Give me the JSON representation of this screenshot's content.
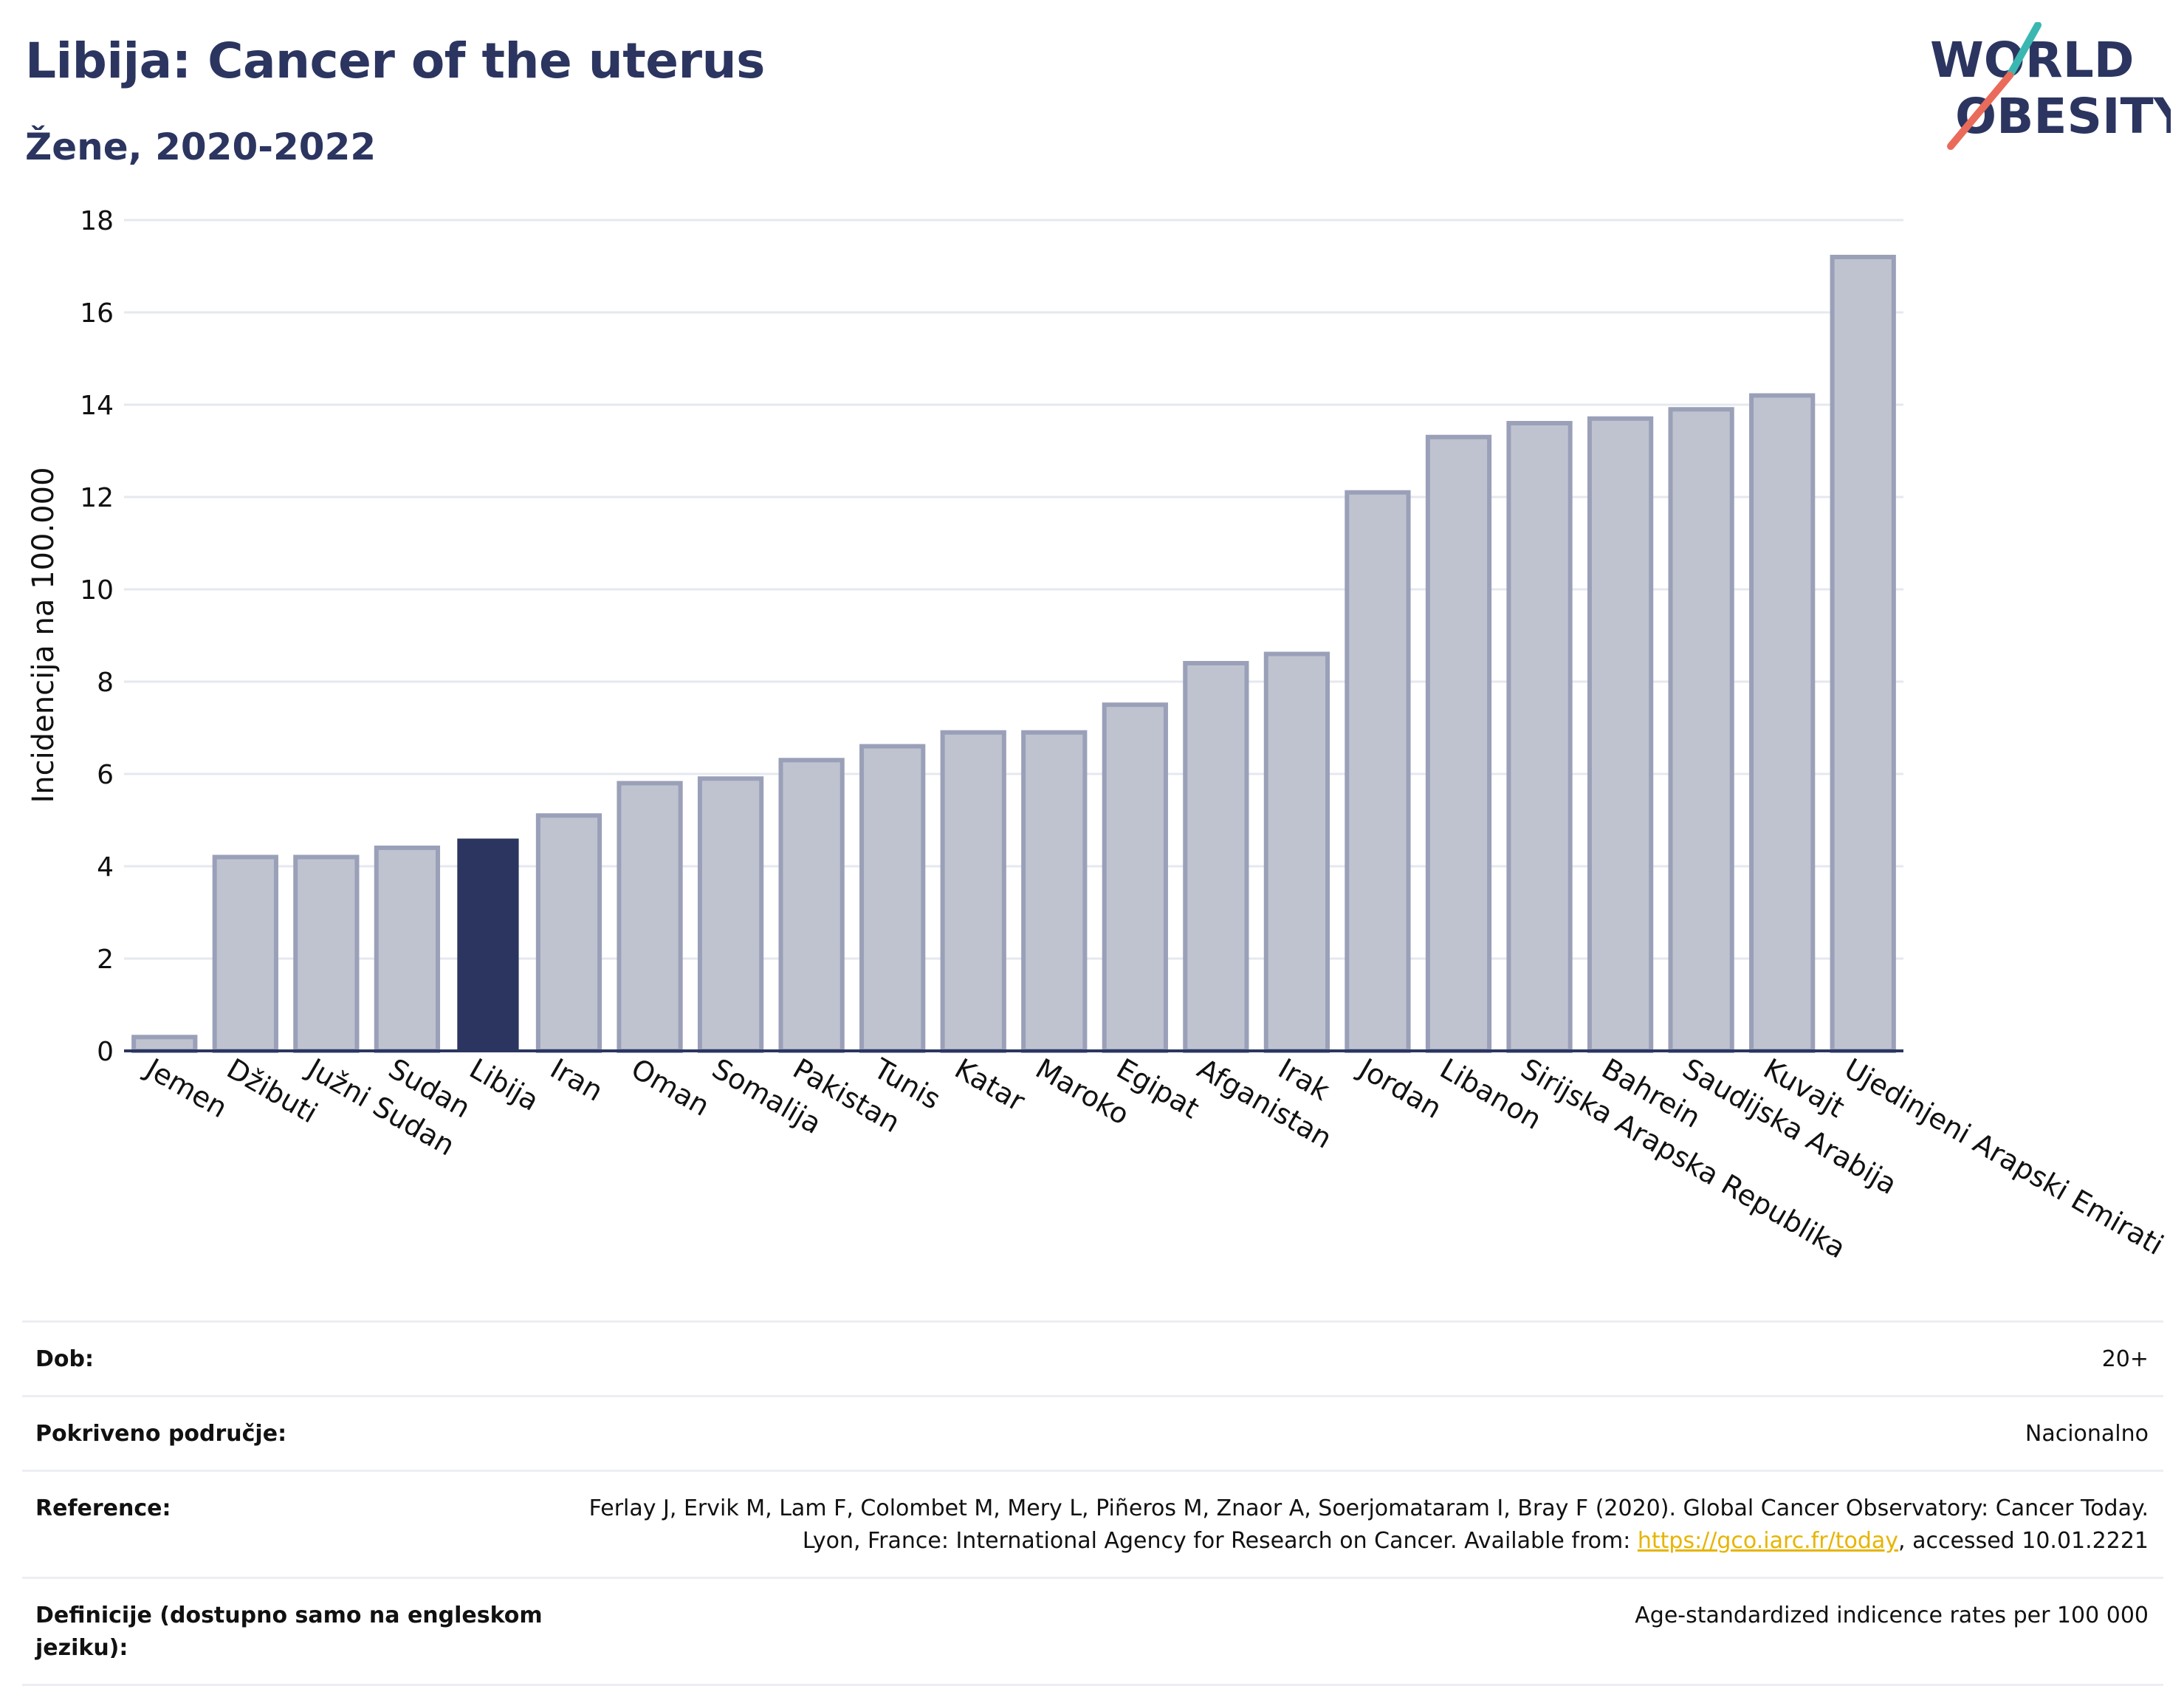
{
  "header": {
    "title": "Libija: Cancer of the uterus",
    "subtitle": "Žene, 2020-2022"
  },
  "logo": {
    "line1": "WORLD",
    "line2": "OBESITY"
  },
  "chart_data": {
    "type": "bar",
    "ylabel": "Incidencija na 100.000",
    "xlabel": "",
    "ylim": [
      0,
      18
    ],
    "yticks": [
      0,
      2,
      4,
      6,
      8,
      10,
      12,
      14,
      16,
      18
    ],
    "grid": true,
    "highlight": "Libija",
    "categories": [
      "Jemen",
      "Džibuti",
      "Južni Sudan",
      "Sudan",
      "Libija",
      "Iran",
      "Oman",
      "Somalija",
      "Pakistan",
      "Tunis",
      "Katar",
      "Maroko",
      "Egipat",
      "Afganistan",
      "Irak",
      "Jordan",
      "Libanon",
      "Sirijska Arapska Republika",
      "Bahrein",
      "Saudijska Arabija",
      "Kuvajt",
      "Ujedinjeni Arapski Emirati"
    ],
    "values": [
      0.3,
      4.2,
      4.2,
      4.4,
      4.6,
      5.1,
      5.8,
      5.9,
      6.3,
      6.6,
      6.9,
      6.9,
      7.5,
      8.4,
      8.6,
      12.1,
      13.3,
      13.6,
      13.7,
      13.9,
      14.2,
      17.2
    ],
    "colors": {
      "bar": "#bfc3d0",
      "bar_border": "#9aa0b8",
      "highlight": "#2b3560",
      "grid": "#e6e8ef",
      "axis": "#2b3560"
    }
  },
  "meta": {
    "rows": [
      {
        "key": "Dob:",
        "value": "20+"
      },
      {
        "key": "Pokriveno područje:",
        "value": "Nacionalno"
      },
      {
        "key": "Reference:",
        "value_parts": {
          "text1": "Ferlay J, Ervik M, Lam F, Colombet M, Mery L, Piñeros M, Znaor A, Soerjomataram I, Bray F (2020). Global Cancer Observatory: Cancer Today. Lyon, France: International Agency for Research on Cancer. Available from: ",
          "link": "https://gco.iarc.fr/today",
          "text2": ", accessed 10.01.2221"
        }
      },
      {
        "key": "Definicije (dostupno samo na engleskom jeziku):",
        "value": "Age-standardized indicence rates per 100 000"
      }
    ],
    "link_color": "#e7b400"
  }
}
